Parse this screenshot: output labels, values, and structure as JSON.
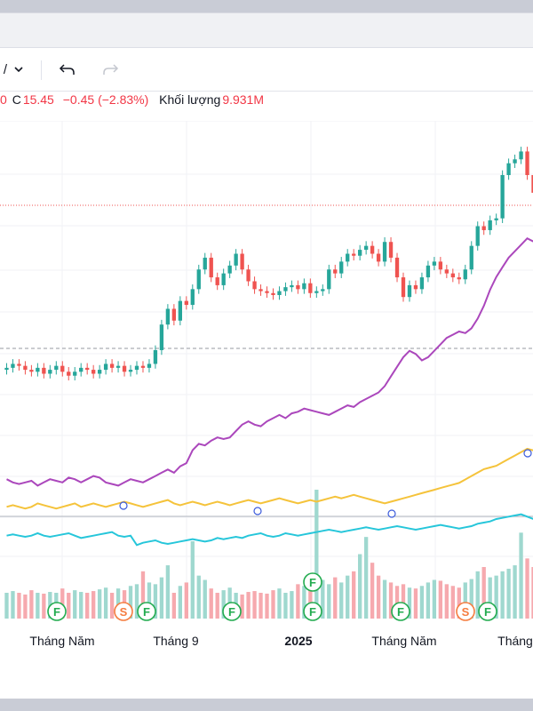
{
  "legend": {
    "open_tail": "0",
    "close_label": "C",
    "close_value": "15.45",
    "change": "−0.45 (−2.83%)",
    "volume_label": "Khối lượng",
    "volume_value": "9.931M"
  },
  "toolbar": {
    "interval_fragment": "/",
    "interval_icon": "chevron-down-icon",
    "undo_icon": "undo-icon",
    "redo_icon": "redo-icon"
  },
  "colors": {
    "up": "#26a69a",
    "down": "#ef5350",
    "vol_up": "#9fd8cf",
    "vol_down": "#f6a9ae",
    "purple": "#ab47bc",
    "yellow": "#f5c33b",
    "cyan": "#26c6da",
    "event_f": "#22ab4f",
    "event_s": "#f57c3f"
  },
  "chart_data": {
    "type": "candlestick",
    "x_ticks": [
      "Tháng Năm",
      "Tháng 9",
      "2025",
      "Tháng Năm",
      "Tháng"
    ],
    "candles_close": [
      11.0,
      11.1,
      11.05,
      10.95,
      10.9,
      11.0,
      10.85,
      10.95,
      11.05,
      10.9,
      10.8,
      10.9,
      11.0,
      10.95,
      10.85,
      10.95,
      11.1,
      11.0,
      11.05,
      10.9,
      10.95,
      11.05,
      11.0,
      11.1,
      11.45,
      12.1,
      12.5,
      12.2,
      12.7,
      12.6,
      13.0,
      13.5,
      13.8,
      13.3,
      13.1,
      13.4,
      13.6,
      13.9,
      13.5,
      13.2,
      13.0,
      12.95,
      12.9,
      12.85,
      12.95,
      13.05,
      13.1,
      13.0,
      13.15,
      12.9,
      12.95,
      13.0,
      13.5,
      13.4,
      13.7,
      13.9,
      13.85,
      14.0,
      14.1,
      13.9,
      13.7,
      14.2,
      13.8,
      13.3,
      12.8,
      13.1,
      13.0,
      13.3,
      13.6,
      13.7,
      13.5,
      13.4,
      13.3,
      13.25,
      13.5,
      14.1,
      14.6,
      14.5,
      14.75,
      14.8,
      15.9,
      16.2,
      16.3,
      16.5,
      15.9,
      15.45
    ],
    "volume": [
      0.3,
      0.32,
      0.3,
      0.28,
      0.33,
      0.3,
      0.29,
      0.31,
      0.3,
      0.35,
      0.3,
      0.33,
      0.31,
      0.3,
      0.32,
      0.34,
      0.36,
      0.3,
      0.35,
      0.33,
      0.38,
      0.4,
      0.55,
      0.42,
      0.4,
      0.48,
      0.62,
      0.3,
      0.38,
      0.42,
      0.9,
      0.5,
      0.45,
      0.35,
      0.3,
      0.33,
      0.36,
      0.3,
      0.28,
      0.31,
      0.32,
      0.3,
      0.29,
      0.33,
      0.35,
      0.3,
      0.32,
      0.4,
      0.38,
      0.33,
      1.5,
      0.45,
      0.4,
      0.48,
      0.42,
      0.5,
      0.55,
      0.75,
      0.95,
      0.65,
      0.5,
      0.45,
      0.42,
      0.38,
      0.4,
      0.36,
      0.35,
      0.38,
      0.42,
      0.45,
      0.44,
      0.4,
      0.38,
      0.36,
      0.42,
      0.46,
      0.55,
      0.6,
      0.48,
      0.5,
      0.55,
      0.58,
      0.62,
      1.0,
      0.7,
      0.6
    ],
    "events": [
      "F",
      "S",
      "F",
      "F",
      "F",
      "F",
      "F",
      "S",
      "F"
    ],
    "series": [
      {
        "values": [
          2.3,
          2.2,
          2.15,
          2.2,
          2.25,
          2.1,
          2.2,
          2.3,
          2.25,
          2.2,
          2.35,
          2.3,
          2.2,
          2.3,
          2.4,
          2.35,
          2.2,
          2.15,
          2.1,
          2.2,
          2.3,
          2.25,
          2.2,
          2.3,
          2.4,
          2.5,
          2.6,
          2.5,
          2.7,
          2.8,
          3.2,
          3.4,
          3.35,
          3.5,
          3.6,
          3.55,
          3.6,
          3.8,
          4.0,
          4.1,
          4.0,
          3.95,
          4.1,
          4.2,
          4.3,
          4.2,
          4.35,
          4.4,
          4.5,
          4.45,
          4.4,
          4.35,
          4.3,
          4.4,
          4.5,
          4.6,
          4.55,
          4.7,
          4.8,
          4.9,
          5.0,
          5.2,
          5.5,
          5.8,
          6.1,
          6.3,
          6.2,
          6.0,
          6.1,
          6.3,
          6.5,
          6.7,
          6.8,
          6.9,
          6.85,
          7.0,
          7.3,
          7.7,
          8.2,
          8.6,
          8.9,
          9.2,
          9.4,
          9.6,
          9.8,
          9.7
        ]
      },
      {
        "values": [
          1.2,
          1.25,
          1.2,
          1.15,
          1.2,
          1.3,
          1.25,
          1.2,
          1.15,
          1.2,
          1.25,
          1.3,
          1.2,
          1.25,
          1.3,
          1.25,
          1.2,
          1.25,
          1.3,
          1.35,
          1.3,
          1.25,
          1.2,
          1.25,
          1.3,
          1.35,
          1.4,
          1.3,
          1.25,
          1.3,
          1.35,
          1.3,
          1.25,
          1.3,
          1.35,
          1.3,
          1.25,
          1.3,
          1.35,
          1.4,
          1.35,
          1.3,
          1.35,
          1.4,
          1.45,
          1.4,
          1.35,
          1.3,
          1.35,
          1.4,
          1.35,
          1.4,
          1.45,
          1.5,
          1.45,
          1.5,
          1.55,
          1.5,
          1.45,
          1.4,
          1.35,
          1.3,
          1.35,
          1.4,
          1.45,
          1.5,
          1.55,
          1.6,
          1.65,
          1.7,
          1.75,
          1.8,
          1.85,
          1.9,
          2.0,
          2.1,
          2.2,
          2.3,
          2.35,
          2.4,
          2.5,
          2.6,
          2.7,
          2.8,
          2.9,
          2.85
        ]
      },
      {
        "values": [
          3.0,
          3.05,
          3.0,
          2.95,
          3.0,
          3.1,
          3.0,
          2.95,
          3.0,
          3.05,
          3.1,
          3.0,
          2.9,
          2.95,
          3.0,
          3.05,
          3.1,
          3.15,
          3.0,
          2.95,
          3.0,
          2.6,
          2.7,
          2.75,
          2.8,
          2.7,
          2.65,
          2.7,
          2.75,
          2.8,
          2.85,
          2.8,
          2.75,
          2.8,
          2.9,
          2.85,
          2.9,
          2.95,
          2.9,
          3.0,
          3.05,
          3.1,
          3.0,
          2.95,
          3.0,
          3.1,
          3.05,
          3.0,
          3.05,
          3.1,
          3.15,
          3.2,
          3.25,
          3.2,
          3.15,
          3.2,
          3.25,
          3.3,
          3.35,
          3.3,
          3.25,
          3.3,
          3.35,
          3.4,
          3.35,
          3.3,
          3.25,
          3.3,
          3.35,
          3.4,
          3.45,
          3.4,
          3.35,
          3.3,
          3.35,
          3.4,
          3.5,
          3.55,
          3.6,
          3.7,
          3.75,
          3.8,
          3.85,
          3.9,
          3.8,
          3.7
        ]
      }
    ]
  }
}
